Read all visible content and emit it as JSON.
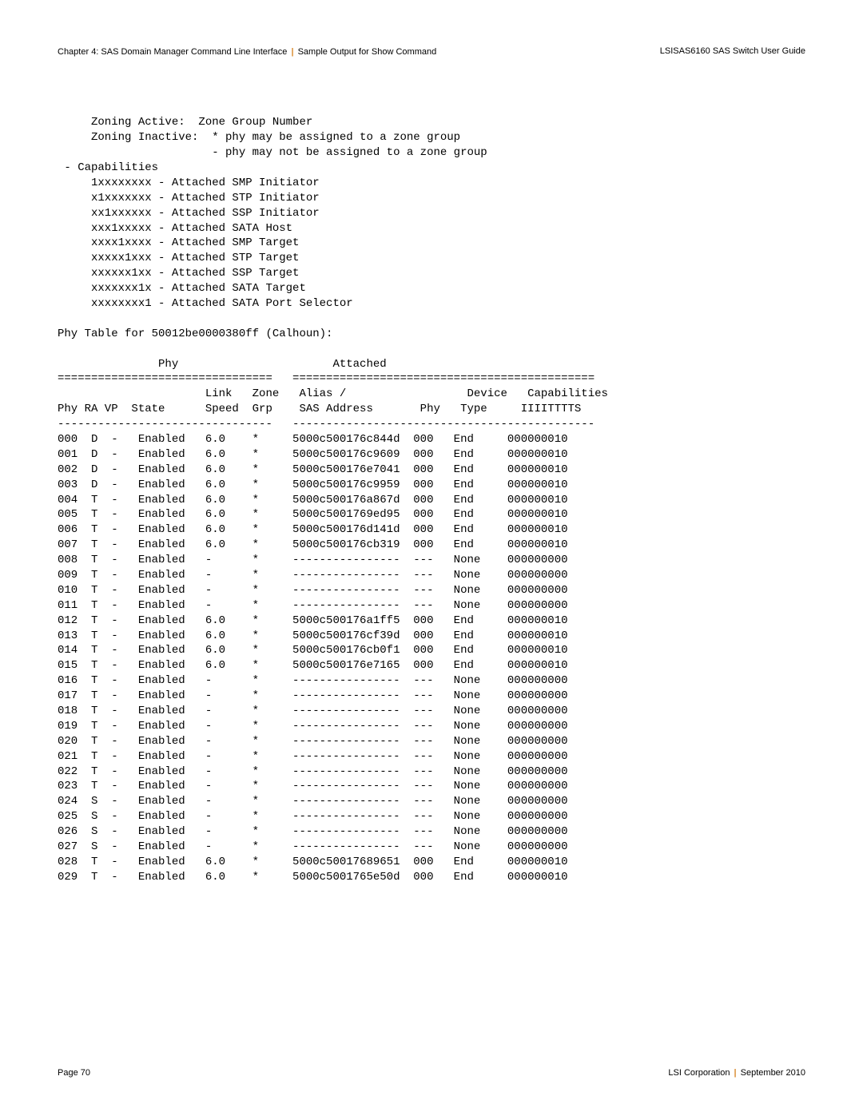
{
  "header": {
    "chapter": "Chapter 4: SAS Domain Manager Command Line Interface",
    "section": "Sample Output for Show Command",
    "doc_title": "LSISAS6160 SAS Switch User Guide"
  },
  "footer": {
    "page": "Page 70",
    "company": "LSI Corporation",
    "date": "September 2010"
  },
  "legend": {
    "zoning_active": "Zoning Active:  Zone Group Number",
    "zoning_inactive_1": "Zoning Inactive:  * phy may be assigned to a zone group",
    "zoning_inactive_2": "                  - phy may not be assigned to a zone group",
    "cap_header": "- Capabilities",
    "caps": [
      "1xxxxxxxx - Attached SMP Initiator",
      "x1xxxxxxx - Attached STP Initiator",
      "xx1xxxxxx - Attached SSP Initiator",
      "xxx1xxxxx - Attached SATA Host",
      "xxxx1xxxx - Attached SMP Target",
      "xxxxx1xxx - Attached STP Target",
      "xxxxxx1xx - Attached SSP Target",
      "xxxxxxx1x - Attached SATA Target",
      "xxxxxxxx1 - Attached SATA Port Selector"
    ]
  },
  "phy_table": {
    "title": "Phy Table for 50012be0000380ff (Calhoun):",
    "section_phy": "Phy",
    "section_attached": "Attached",
    "sep1": "================================",
    "sep2": "=============================================",
    "hdr_line1": "                      Link   Zone   Alias /                  Device   Capabilities",
    "hdr_line2": "Phy RA VP  State      Speed  Grp    SAS Address       Phy   Type     IIIITTTTS",
    "dash1": "--------------------------------",
    "dash2": "---------------------------------------------",
    "rows": [
      {
        "phy": "000",
        "ra": "D",
        "vp": "-",
        "state": "Enabled",
        "speed": "6.0",
        "grp": "*",
        "sas": "5000c500176c844d",
        "aphy": "000",
        "dtype": "End",
        "caps": "000000010"
      },
      {
        "phy": "001",
        "ra": "D",
        "vp": "-",
        "state": "Enabled",
        "speed": "6.0",
        "grp": "*",
        "sas": "5000c500176c9609",
        "aphy": "000",
        "dtype": "End",
        "caps": "000000010"
      },
      {
        "phy": "002",
        "ra": "D",
        "vp": "-",
        "state": "Enabled",
        "speed": "6.0",
        "grp": "*",
        "sas": "5000c500176e7041",
        "aphy": "000",
        "dtype": "End",
        "caps": "000000010"
      },
      {
        "phy": "003",
        "ra": "D",
        "vp": "-",
        "state": "Enabled",
        "speed": "6.0",
        "grp": "*",
        "sas": "5000c500176c9959",
        "aphy": "000",
        "dtype": "End",
        "caps": "000000010"
      },
      {
        "phy": "004",
        "ra": "T",
        "vp": "-",
        "state": "Enabled",
        "speed": "6.0",
        "grp": "*",
        "sas": "5000c500176a867d",
        "aphy": "000",
        "dtype": "End",
        "caps": "000000010"
      },
      {
        "phy": "005",
        "ra": "T",
        "vp": "-",
        "state": "Enabled",
        "speed": "6.0",
        "grp": "*",
        "sas": "5000c5001769ed95",
        "aphy": "000",
        "dtype": "End",
        "caps": "000000010"
      },
      {
        "phy": "006",
        "ra": "T",
        "vp": "-",
        "state": "Enabled",
        "speed": "6.0",
        "grp": "*",
        "sas": "5000c500176d141d",
        "aphy": "000",
        "dtype": "End",
        "caps": "000000010"
      },
      {
        "phy": "007",
        "ra": "T",
        "vp": "-",
        "state": "Enabled",
        "speed": "6.0",
        "grp": "*",
        "sas": "5000c500176cb319",
        "aphy": "000",
        "dtype": "End",
        "caps": "000000010"
      },
      {
        "phy": "008",
        "ra": "T",
        "vp": "-",
        "state": "Enabled",
        "speed": "-",
        "grp": "*",
        "sas": "----------------",
        "aphy": "---",
        "dtype": "None",
        "caps": "000000000"
      },
      {
        "phy": "009",
        "ra": "T",
        "vp": "-",
        "state": "Enabled",
        "speed": "-",
        "grp": "*",
        "sas": "----------------",
        "aphy": "---",
        "dtype": "None",
        "caps": "000000000"
      },
      {
        "phy": "010",
        "ra": "T",
        "vp": "-",
        "state": "Enabled",
        "speed": "-",
        "grp": "*",
        "sas": "----------------",
        "aphy": "---",
        "dtype": "None",
        "caps": "000000000"
      },
      {
        "phy": "011",
        "ra": "T",
        "vp": "-",
        "state": "Enabled",
        "speed": "-",
        "grp": "*",
        "sas": "----------------",
        "aphy": "---",
        "dtype": "None",
        "caps": "000000000"
      },
      {
        "phy": "012",
        "ra": "T",
        "vp": "-",
        "state": "Enabled",
        "speed": "6.0",
        "grp": "*",
        "sas": "5000c500176a1ff5",
        "aphy": "000",
        "dtype": "End",
        "caps": "000000010"
      },
      {
        "phy": "013",
        "ra": "T",
        "vp": "-",
        "state": "Enabled",
        "speed": "6.0",
        "grp": "*",
        "sas": "5000c500176cf39d",
        "aphy": "000",
        "dtype": "End",
        "caps": "000000010"
      },
      {
        "phy": "014",
        "ra": "T",
        "vp": "-",
        "state": "Enabled",
        "speed": "6.0",
        "grp": "*",
        "sas": "5000c500176cb0f1",
        "aphy": "000",
        "dtype": "End",
        "caps": "000000010"
      },
      {
        "phy": "015",
        "ra": "T",
        "vp": "-",
        "state": "Enabled",
        "speed": "6.0",
        "grp": "*",
        "sas": "5000c500176e7165",
        "aphy": "000",
        "dtype": "End",
        "caps": "000000010"
      },
      {
        "phy": "016",
        "ra": "T",
        "vp": "-",
        "state": "Enabled",
        "speed": "-",
        "grp": "*",
        "sas": "----------------",
        "aphy": "---",
        "dtype": "None",
        "caps": "000000000"
      },
      {
        "phy": "017",
        "ra": "T",
        "vp": "-",
        "state": "Enabled",
        "speed": "-",
        "grp": "*",
        "sas": "----------------",
        "aphy": "---",
        "dtype": "None",
        "caps": "000000000"
      },
      {
        "phy": "018",
        "ra": "T",
        "vp": "-",
        "state": "Enabled",
        "speed": "-",
        "grp": "*",
        "sas": "----------------",
        "aphy": "---",
        "dtype": "None",
        "caps": "000000000"
      },
      {
        "phy": "019",
        "ra": "T",
        "vp": "-",
        "state": "Enabled",
        "speed": "-",
        "grp": "*",
        "sas": "----------------",
        "aphy": "---",
        "dtype": "None",
        "caps": "000000000"
      },
      {
        "phy": "020",
        "ra": "T",
        "vp": "-",
        "state": "Enabled",
        "speed": "-",
        "grp": "*",
        "sas": "----------------",
        "aphy": "---",
        "dtype": "None",
        "caps": "000000000"
      },
      {
        "phy": "021",
        "ra": "T",
        "vp": "-",
        "state": "Enabled",
        "speed": "-",
        "grp": "*",
        "sas": "----------------",
        "aphy": "---",
        "dtype": "None",
        "caps": "000000000"
      },
      {
        "phy": "022",
        "ra": "T",
        "vp": "-",
        "state": "Enabled",
        "speed": "-",
        "grp": "*",
        "sas": "----------------",
        "aphy": "---",
        "dtype": "None",
        "caps": "000000000"
      },
      {
        "phy": "023",
        "ra": "T",
        "vp": "-",
        "state": "Enabled",
        "speed": "-",
        "grp": "*",
        "sas": "----------------",
        "aphy": "---",
        "dtype": "None",
        "caps": "000000000"
      },
      {
        "phy": "024",
        "ra": "S",
        "vp": "-",
        "state": "Enabled",
        "speed": "-",
        "grp": "*",
        "sas": "----------------",
        "aphy": "---",
        "dtype": "None",
        "caps": "000000000"
      },
      {
        "phy": "025",
        "ra": "S",
        "vp": "-",
        "state": "Enabled",
        "speed": "-",
        "grp": "*",
        "sas": "----------------",
        "aphy": "---",
        "dtype": "None",
        "caps": "000000000"
      },
      {
        "phy": "026",
        "ra": "S",
        "vp": "-",
        "state": "Enabled",
        "speed": "-",
        "grp": "*",
        "sas": "----------------",
        "aphy": "---",
        "dtype": "None",
        "caps": "000000000"
      },
      {
        "phy": "027",
        "ra": "S",
        "vp": "-",
        "state": "Enabled",
        "speed": "-",
        "grp": "*",
        "sas": "----------------",
        "aphy": "---",
        "dtype": "None",
        "caps": "000000000"
      },
      {
        "phy": "028",
        "ra": "T",
        "vp": "-",
        "state": "Enabled",
        "speed": "6.0",
        "grp": "*",
        "sas": "5000c50017689651",
        "aphy": "000",
        "dtype": "End",
        "caps": "000000010"
      },
      {
        "phy": "029",
        "ra": "T",
        "vp": "-",
        "state": "Enabled",
        "speed": "6.0",
        "grp": "*",
        "sas": "5000c5001765e50d",
        "aphy": "000",
        "dtype": "End",
        "caps": "000000010"
      }
    ]
  }
}
